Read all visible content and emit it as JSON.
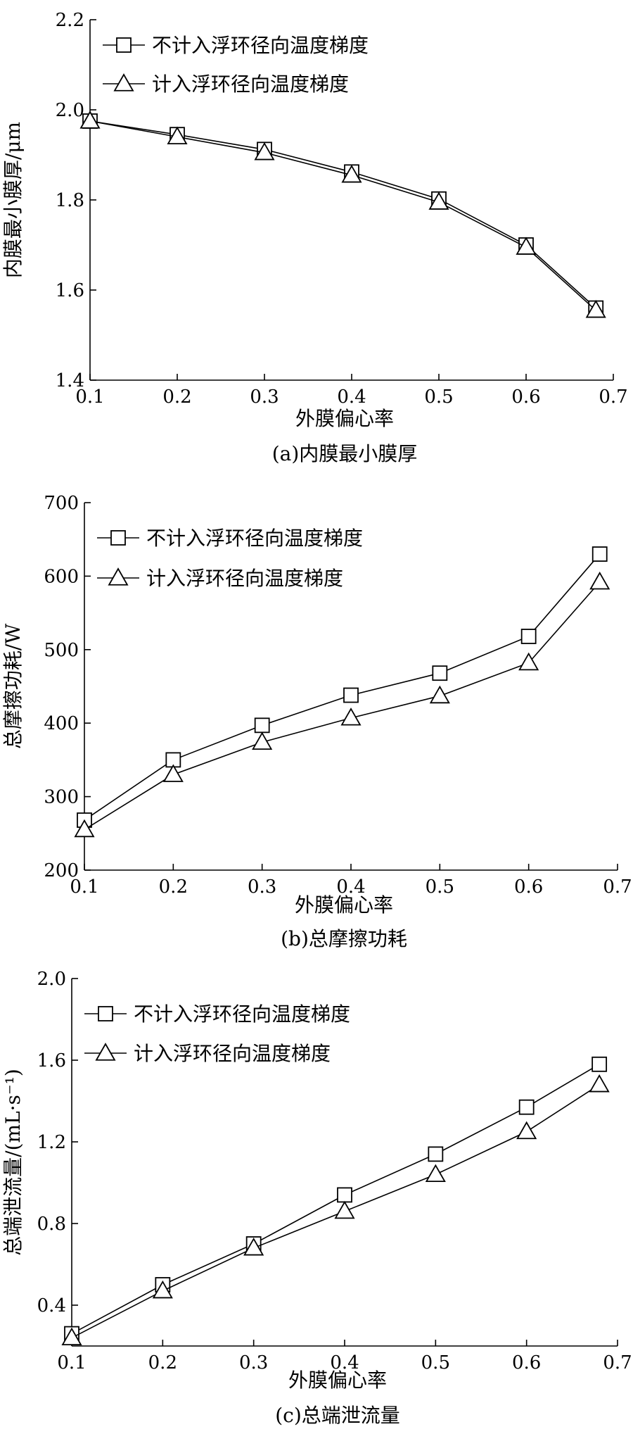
{
  "chart_data": [
    {
      "type": "line",
      "caption": "(a)内膜最小膜厚",
      "xlabel": "外膜偏心率",
      "ylabel": "内膜最小膜厚/μm",
      "xlim": [
        0.1,
        0.7
      ],
      "ylim": [
        1.4,
        2.2
      ],
      "xticks": [
        0.1,
        0.2,
        0.3,
        0.4,
        0.5,
        0.6,
        0.7
      ],
      "xtick_labels": [
        "0.1",
        "0.2",
        "0.3",
        "0.4",
        "0.5",
        "0.6",
        "0.7"
      ],
      "yticks": [
        1.4,
        1.6,
        1.8,
        2.0,
        2.2
      ],
      "ytick_labels": [
        "1.4",
        "1.6",
        "1.8",
        "2.0",
        "2.2"
      ],
      "legend_position": "top-left",
      "x": [
        0.1,
        0.2,
        0.3,
        0.4,
        0.5,
        0.6,
        0.68
      ],
      "series": [
        {
          "name": "不计入浮环径向温度梯度",
          "marker": "square",
          "values": [
            1.975,
            1.945,
            1.912,
            1.862,
            1.802,
            1.7,
            1.56
          ]
        },
        {
          "name": "计入浮环径向温度梯度",
          "marker": "triangle",
          "values": [
            1.975,
            1.94,
            1.905,
            1.855,
            1.795,
            1.695,
            1.555
          ]
        }
      ]
    },
    {
      "type": "line",
      "caption": "(b)总摩擦功耗",
      "xlabel": "外膜偏心率",
      "ylabel": "总摩擦功耗/W",
      "xlim": [
        0.1,
        0.7
      ],
      "ylim": [
        200,
        700
      ],
      "xticks": [
        0.1,
        0.2,
        0.3,
        0.4,
        0.5,
        0.6,
        0.7
      ],
      "xtick_labels": [
        "0.1",
        "0.2",
        "0.3",
        "0.4",
        "0.5",
        "0.6",
        "0.7"
      ],
      "yticks": [
        200,
        300,
        400,
        500,
        600,
        700
      ],
      "ytick_labels": [
        "200",
        "300",
        "400",
        "500",
        "600",
        "700"
      ],
      "legend_position": "top-left",
      "x": [
        0.1,
        0.2,
        0.3,
        0.4,
        0.5,
        0.6,
        0.68
      ],
      "series": [
        {
          "name": "不计入浮环径向温度梯度",
          "marker": "square",
          "values": [
            268,
            350,
            397,
            438,
            468,
            518,
            630
          ]
        },
        {
          "name": "计入浮环径向温度梯度",
          "marker": "triangle",
          "values": [
            255,
            330,
            374,
            407,
            437,
            482,
            592
          ]
        }
      ]
    },
    {
      "type": "line",
      "caption": "(c)总端泄流量",
      "xlabel": "外膜偏心率",
      "ylabel": "总端泄流量/(mL·s⁻¹)",
      "xlim": [
        0.1,
        0.7
      ],
      "ylim": [
        0.2,
        2.0
      ],
      "xticks": [
        0.1,
        0.2,
        0.3,
        0.4,
        0.5,
        0.6,
        0.7
      ],
      "xtick_labels": [
        "0.1",
        "0.2",
        "0.3",
        "0.4",
        "0.5",
        "0.6",
        "0.7"
      ],
      "yticks": [
        0.4,
        0.8,
        1.2,
        1.6,
        2.0
      ],
      "ytick_labels": [
        "0.4",
        "0.8",
        "1.2",
        "1.6",
        "2.0"
      ],
      "legend_position": "top-left",
      "x": [
        0.1,
        0.2,
        0.3,
        0.4,
        0.5,
        0.6,
        0.68
      ],
      "series": [
        {
          "name": "不计入浮环径向温度梯度",
          "marker": "square",
          "values": [
            0.26,
            0.5,
            0.7,
            0.94,
            1.14,
            1.37,
            1.58
          ]
        },
        {
          "name": "计入浮环径向温度梯度",
          "marker": "triangle",
          "values": [
            0.24,
            0.47,
            0.68,
            0.86,
            1.04,
            1.25,
            1.48
          ]
        }
      ]
    }
  ]
}
